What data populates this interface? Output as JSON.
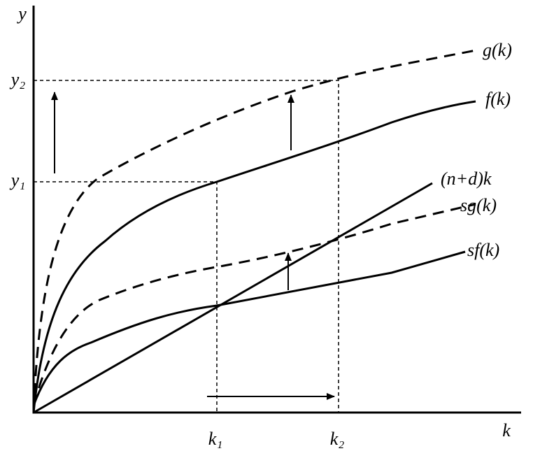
{
  "axes": {
    "y_label": "y",
    "x_label": "k"
  },
  "levels": {
    "y1": "y₁",
    "y2": "y₂",
    "k1": "k₁",
    "k2": "k₂"
  },
  "curves": [
    {
      "label": "g(k)"
    },
    {
      "label": "f(k)"
    },
    {
      "label": "(n+d)k"
    },
    {
      "label": "sg(k)"
    },
    {
      "label": "sf(k)"
    }
  ]
}
